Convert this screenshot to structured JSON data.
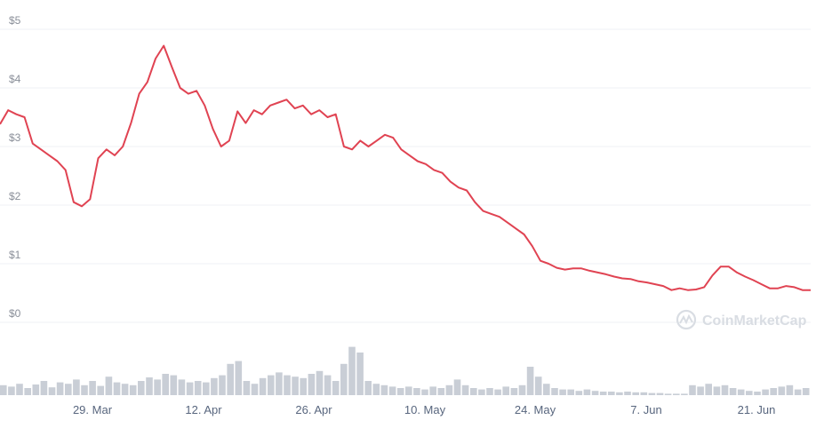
{
  "chart_data": {
    "type": "line",
    "series": [
      {
        "values": [
          3.38,
          3.62,
          3.55,
          3.5,
          3.05,
          2.95,
          2.85,
          2.75,
          2.6,
          2.05,
          1.98,
          2.1,
          2.8,
          2.95,
          2.85,
          3.0,
          3.4,
          3.9,
          4.1,
          4.5,
          4.72,
          4.35,
          4.0,
          3.9,
          3.95,
          3.7,
          3.3,
          3.0,
          3.1,
          3.6,
          3.4,
          3.62,
          3.55,
          3.7,
          3.75,
          3.8,
          3.65,
          3.7,
          3.55,
          3.62,
          3.5,
          3.55,
          3.0,
          2.95,
          3.1,
          3.0,
          3.1,
          3.2,
          3.15,
          2.95,
          2.85,
          2.75,
          2.7,
          2.6,
          2.55,
          2.4,
          2.3,
          2.25,
          2.05,
          1.9,
          1.85,
          1.8,
          1.7,
          1.6,
          1.5,
          1.3,
          1.05,
          1.0,
          0.93,
          0.9,
          0.92,
          0.92,
          0.88,
          0.85,
          0.82,
          0.78,
          0.75,
          0.74,
          0.7,
          0.68,
          0.65,
          0.62,
          0.55,
          0.58,
          0.55,
          0.56,
          0.6,
          0.8,
          0.95,
          0.95,
          0.85,
          0.78,
          0.72,
          0.65,
          0.58,
          0.58,
          0.62,
          0.6,
          0.55,
          0.55
        ]
      }
    ],
    "volume": [
      0.14,
      0.12,
      0.16,
      0.1,
      0.15,
      0.2,
      0.11,
      0.18,
      0.16,
      0.22,
      0.14,
      0.2,
      0.13,
      0.26,
      0.18,
      0.16,
      0.14,
      0.2,
      0.25,
      0.22,
      0.3,
      0.28,
      0.22,
      0.18,
      0.2,
      0.18,
      0.24,
      0.28,
      0.44,
      0.48,
      0.2,
      0.16,
      0.24,
      0.28,
      0.32,
      0.28,
      0.26,
      0.24,
      0.3,
      0.34,
      0.28,
      0.2,
      0.44,
      0.68,
      0.6,
      0.2,
      0.16,
      0.14,
      0.12,
      0.1,
      0.12,
      0.1,
      0.08,
      0.12,
      0.1,
      0.14,
      0.22,
      0.14,
      0.1,
      0.08,
      0.1,
      0.08,
      0.12,
      0.1,
      0.14,
      0.4,
      0.26,
      0.16,
      0.1,
      0.08,
      0.08,
      0.06,
      0.08,
      0.06,
      0.05,
      0.05,
      0.04,
      0.05,
      0.04,
      0.04,
      0.03,
      0.03,
      0.02,
      0.02,
      0.02,
      0.14,
      0.12,
      0.16,
      0.12,
      0.14,
      0.1,
      0.08,
      0.06,
      0.05,
      0.08,
      0.1,
      0.12,
      0.14,
      0.08,
      0.1
    ],
    "x_tick_labels": [
      "29. Mar",
      "12. Apr",
      "26. Apr",
      "10. May",
      "24. May",
      "7. Jun",
      "21. Jun"
    ],
    "y_tick_labels": [
      "$0",
      "$1",
      "$2",
      "$3",
      "$4",
      "$5"
    ],
    "ylim": [
      0,
      5
    ],
    "grid": true,
    "colors": {
      "line": "#e04352",
      "volume": "#c9ced6",
      "grid": "#eff2f5"
    },
    "watermark": "CoinMarketCap"
  }
}
